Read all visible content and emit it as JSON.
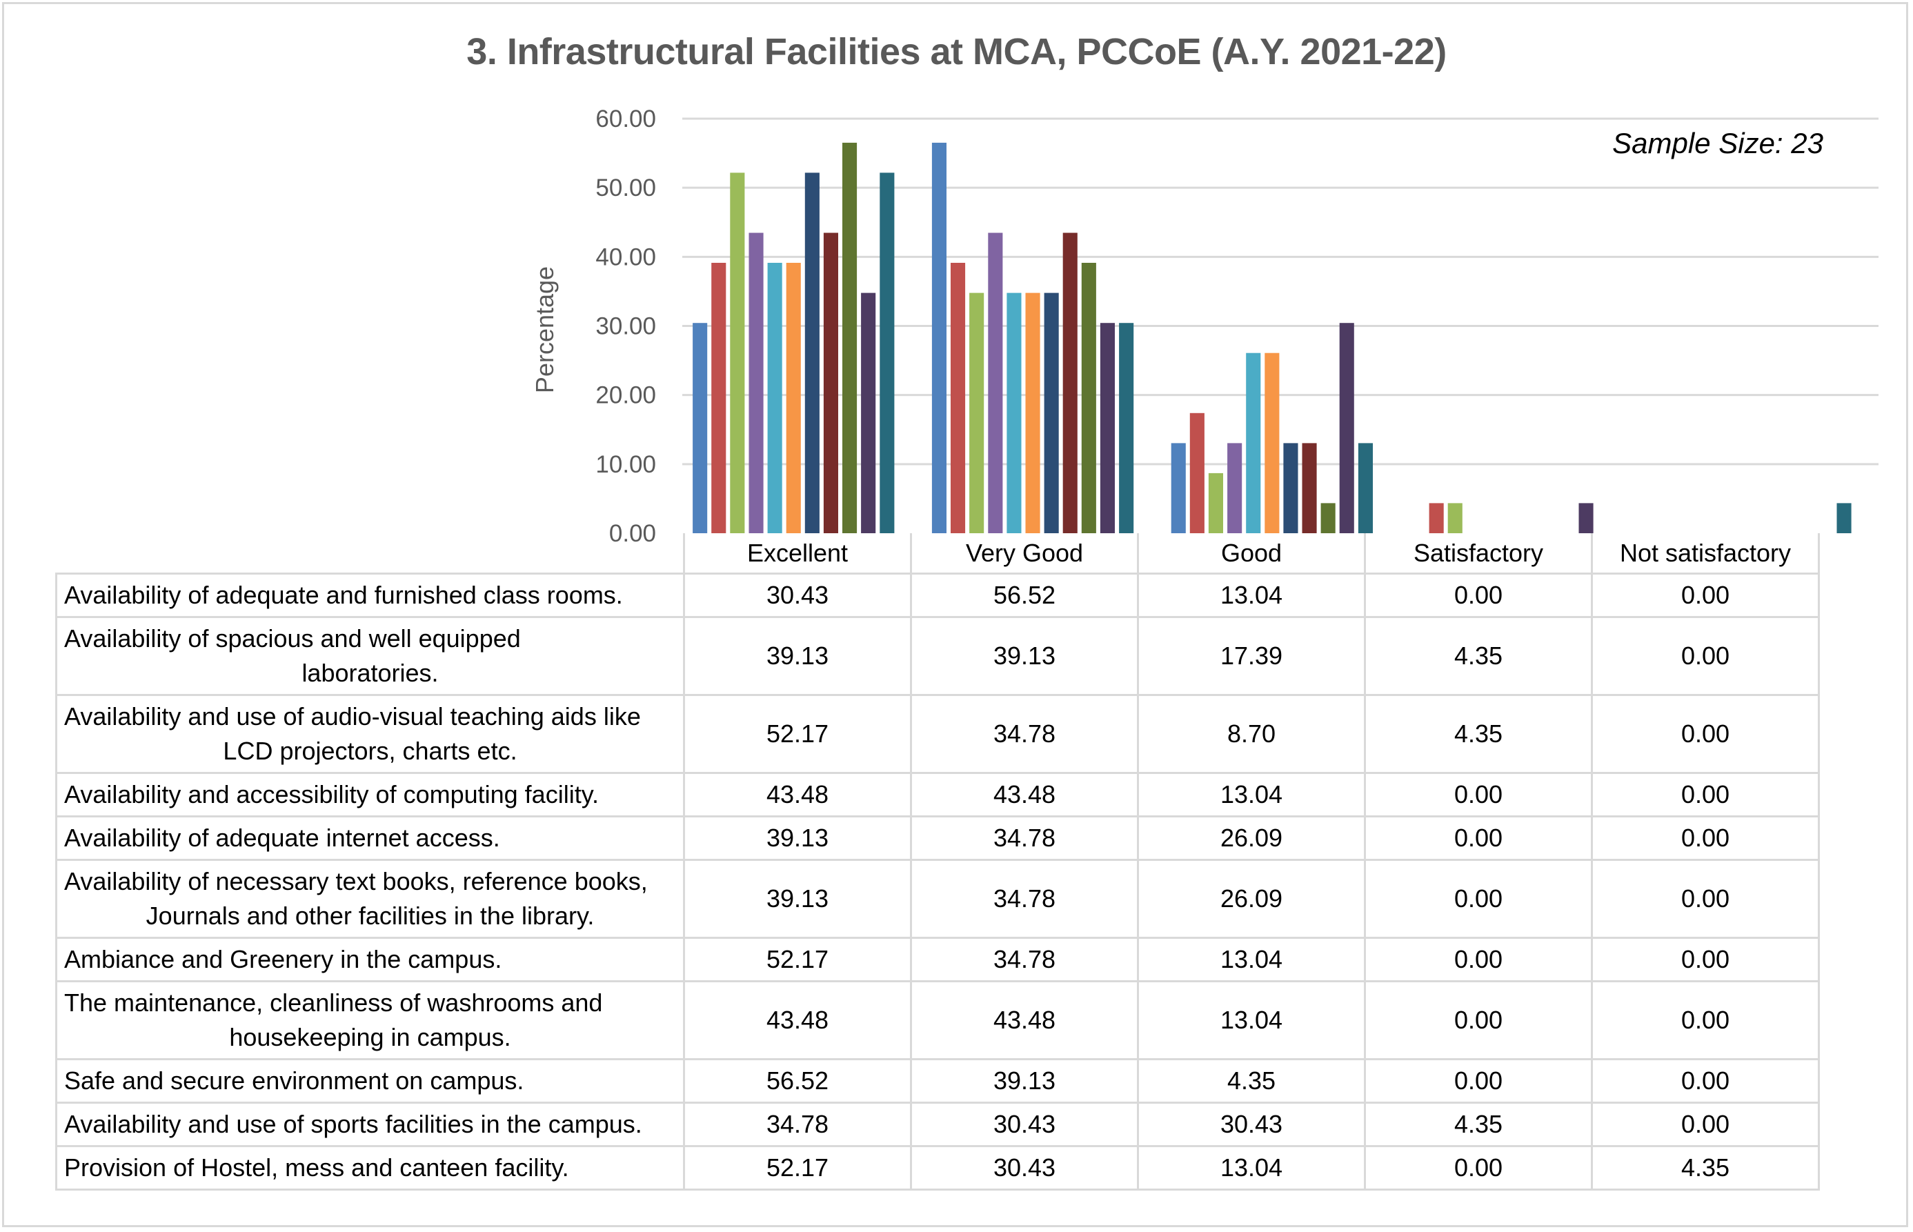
{
  "chart_data": {
    "type": "bar",
    "title": "3. Infrastructural Facilities at MCA, PCCoE (A.Y. 2021-22)",
    "annotation": "Sample Size: 23",
    "xlabel": "",
    "ylabel": "Percentage",
    "ylim": [
      0,
      60
    ],
    "yticks": [
      "0.00",
      "10.00",
      "20.00",
      "30.00",
      "40.00",
      "50.00",
      "60.00"
    ],
    "grid": true,
    "legend": "data-table",
    "categories": [
      "Excellent",
      "Very Good",
      "Good",
      "Satisfactory",
      "Not satisfactory"
    ],
    "series": [
      {
        "name": "Availability of adequate and furnished class rooms.",
        "name_lines": [
          "Availability of adequate and furnished class rooms."
        ],
        "color": "#4F81BD",
        "values": [
          30.43,
          56.52,
          13.04,
          0.0,
          0.0
        ],
        "labels": [
          "30.43",
          "56.52",
          "13.04",
          "0.00",
          "0.00"
        ]
      },
      {
        "name": "Availability of spacious and well equipped laboratories.",
        "name_lines": [
          "Availability of spacious and well equipped",
          "laboratories."
        ],
        "color": "#C0504D",
        "values": [
          39.13,
          39.13,
          17.39,
          4.35,
          0.0
        ],
        "labels": [
          "39.13",
          "39.13",
          "17.39",
          "4.35",
          "0.00"
        ]
      },
      {
        "name": "Availability and use of audio-visual teaching aids like LCD projectors, charts etc.",
        "name_lines": [
          "Availability and use of audio-visual teaching aids like",
          "LCD projectors, charts etc."
        ],
        "color": "#9BBB59",
        "values": [
          52.17,
          34.78,
          8.7,
          4.35,
          0.0
        ],
        "labels": [
          "52.17",
          "34.78",
          "8.70",
          "4.35",
          "0.00"
        ]
      },
      {
        "name": "Availability and accessibility of computing facility.",
        "name_lines": [
          "Availability and accessibility of computing facility."
        ],
        "color": "#8064A2",
        "values": [
          43.48,
          43.48,
          13.04,
          0.0,
          0.0
        ],
        "labels": [
          "43.48",
          "43.48",
          "13.04",
          "0.00",
          "0.00"
        ]
      },
      {
        "name": "Availability of adequate internet access.",
        "name_lines": [
          "Availability of adequate internet access."
        ],
        "color": "#4BACC6",
        "values": [
          39.13,
          34.78,
          26.09,
          0.0,
          0.0
        ],
        "labels": [
          "39.13",
          "34.78",
          "26.09",
          "0.00",
          "0.00"
        ]
      },
      {
        "name": "Availability of necessary text books, reference books, Journals and other facilities in the library.",
        "name_lines": [
          "Availability of necessary text books, reference books,",
          "Journals and other facilities in the library."
        ],
        "color": "#F79646",
        "values": [
          39.13,
          34.78,
          26.09,
          0.0,
          0.0
        ],
        "labels": [
          "39.13",
          "34.78",
          "26.09",
          "0.00",
          "0.00"
        ]
      },
      {
        "name": "Ambiance and Greenery in the campus.",
        "name_lines": [
          "Ambiance and Greenery in the campus."
        ],
        "color": "#2C4D75",
        "values": [
          52.17,
          34.78,
          13.04,
          0.0,
          0.0
        ],
        "labels": [
          "52.17",
          "34.78",
          "13.04",
          "0.00",
          "0.00"
        ]
      },
      {
        "name": "The maintenance, cleanliness of washrooms and housekeeping in campus.",
        "name_lines": [
          "The maintenance, cleanliness of washrooms and",
          "housekeeping in campus."
        ],
        "color": "#772C2A",
        "values": [
          43.48,
          43.48,
          13.04,
          0.0,
          0.0
        ],
        "labels": [
          "43.48",
          "43.48",
          "13.04",
          "0.00",
          "0.00"
        ]
      },
      {
        "name": "Safe and secure environment on campus.",
        "name_lines": [
          "Safe and secure environment on campus."
        ],
        "color": "#5F7530",
        "values": [
          56.52,
          39.13,
          4.35,
          0.0,
          0.0
        ],
        "labels": [
          "56.52",
          "39.13",
          "4.35",
          "0.00",
          "0.00"
        ]
      },
      {
        "name": "Availability and use of sports facilities in the campus.",
        "name_lines": [
          "Availability and use of sports facilities in the campus."
        ],
        "color": "#4D3B62",
        "values": [
          34.78,
          30.43,
          30.43,
          4.35,
          0.0
        ],
        "labels": [
          "34.78",
          "30.43",
          "30.43",
          "4.35",
          "0.00"
        ]
      },
      {
        "name": "Provision of Hostel, mess and canteen facility.",
        "name_lines": [
          "Provision of Hostel, mess and canteen facility."
        ],
        "color": "#276A7C",
        "values": [
          52.17,
          30.43,
          13.04,
          0.0,
          4.35
        ],
        "labels": [
          "52.17",
          "30.43",
          "13.04",
          "0.00",
          "4.35"
        ]
      }
    ]
  }
}
